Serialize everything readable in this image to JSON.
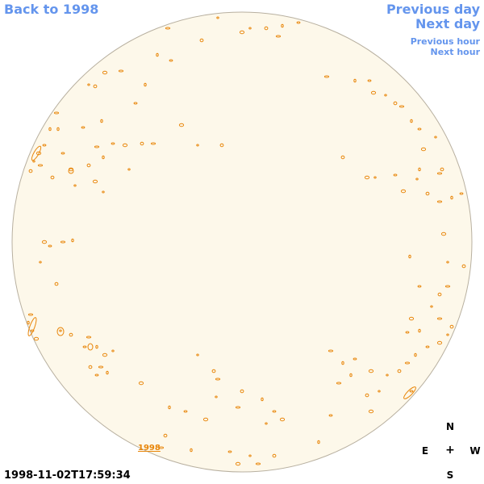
{
  "nav": {
    "back_label": "Back to 1998",
    "prev_day_label": "Previous day",
    "next_day_label": "Next day",
    "prev_hour_label": "Previous hour",
    "next_hour_label": "Next hour"
  },
  "map": {
    "disk_fill": "#fdf8ea",
    "disk_stroke": "#b8b0a0",
    "contour_color": "#e8860a",
    "region_label": "1998"
  },
  "timestamp": "1998-11-02T17:59:34",
  "compass": {
    "north": "N",
    "east": "E",
    "center": "+",
    "west": "W",
    "south": "S"
  }
}
